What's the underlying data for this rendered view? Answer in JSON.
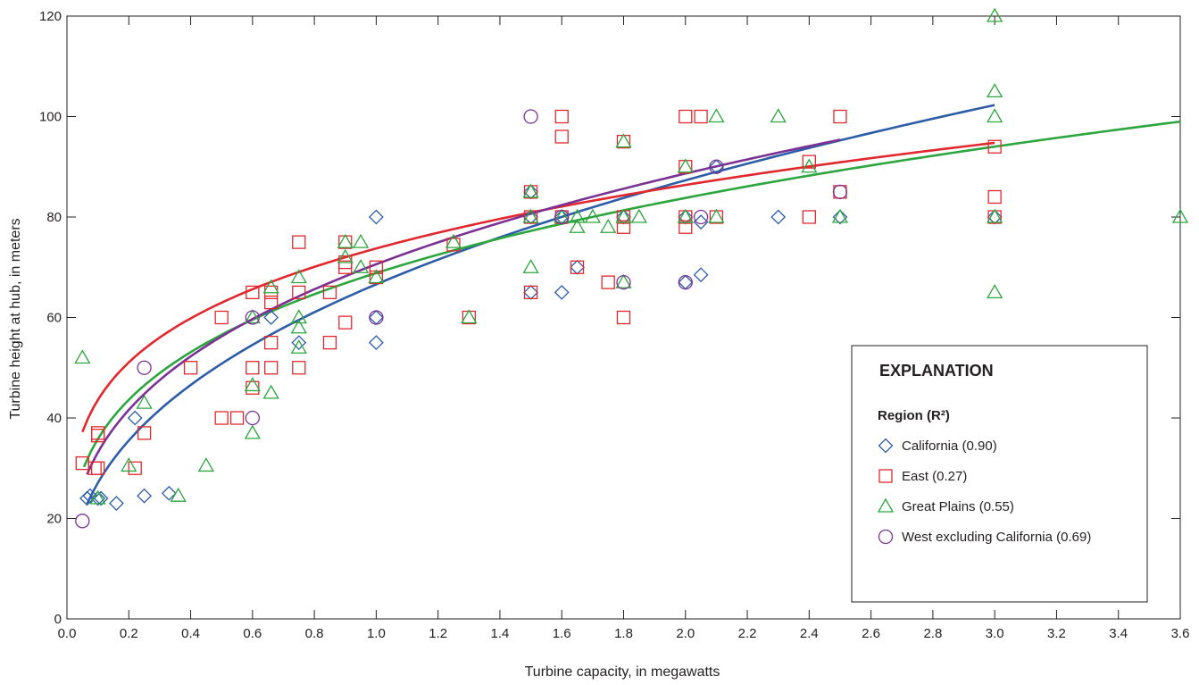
{
  "chart_data": {
    "type": "scatter",
    "xlabel": "Turbine capacity, in megawatts",
    "ylabel": "Turbine height at hub, in meters",
    "xlim": [
      0,
      3.6
    ],
    "ylim": [
      0,
      120
    ],
    "x_ticks": [
      "0.0",
      "0.2",
      "0.4",
      "0.6",
      "0.8",
      "1.0",
      "1.2",
      "1.4",
      "1.6",
      "1.8",
      "2.0",
      "2.2",
      "2.4",
      "2.6",
      "2.8",
      "3.0",
      "3.2",
      "3.4",
      "3.6"
    ],
    "y_ticks": [
      "0",
      "20",
      "40",
      "60",
      "80",
      "100",
      "120"
    ],
    "grid": false,
    "legend": {
      "title": "EXPLANATION",
      "subtitle": "Region (R²)",
      "placement": "lower-right",
      "entries": [
        {
          "label": "California (0.90)",
          "series": 0
        },
        {
          "label": "East (0.27)",
          "series": 1
        },
        {
          "label": "Great Plains (0.55)",
          "series": 2
        },
        {
          "label": "West excluding California (0.69)",
          "series": 3
        }
      ]
    },
    "series": [
      {
        "color": "#2e5da8",
        "marker": "diamond",
        "points": [
          [
            0.065,
            24
          ],
          [
            0.075,
            24.5
          ],
          [
            0.1,
            24
          ],
          [
            0.11,
            24
          ],
          [
            0.16,
            23
          ],
          [
            0.22,
            40
          ],
          [
            0.25,
            24.5
          ],
          [
            0.33,
            25
          ],
          [
            0.66,
            60
          ],
          [
            0.75,
            55
          ],
          [
            1.0,
            80
          ],
          [
            1.0,
            55
          ],
          [
            1.0,
            60
          ],
          [
            1.5,
            65
          ],
          [
            1.5,
            80
          ],
          [
            1.5,
            85
          ],
          [
            1.6,
            80
          ],
          [
            1.6,
            65
          ],
          [
            1.65,
            70
          ],
          [
            1.8,
            80
          ],
          [
            2.0,
            67
          ],
          [
            2.0,
            80
          ],
          [
            2.05,
            79
          ],
          [
            2.05,
            68.5
          ],
          [
            2.1,
            90
          ],
          [
            2.3,
            80
          ],
          [
            2.5,
            80
          ],
          [
            3.0,
            80
          ]
        ]
      },
      {
        "color": "#e0282e",
        "marker": "square",
        "points": [
          [
            0.05,
            31
          ],
          [
            0.09,
            30
          ],
          [
            0.1,
            37
          ],
          [
            0.1,
            36.5
          ],
          [
            0.1,
            30
          ],
          [
            0.22,
            30
          ],
          [
            0.25,
            37
          ],
          [
            0.4,
            50
          ],
          [
            0.5,
            40
          ],
          [
            0.5,
            60
          ],
          [
            0.55,
            40
          ],
          [
            0.6,
            65
          ],
          [
            0.6,
            50
          ],
          [
            0.6,
            46
          ],
          [
            0.66,
            65
          ],
          [
            0.66,
            63
          ],
          [
            0.66,
            55
          ],
          [
            0.66,
            50
          ],
          [
            0.75,
            75
          ],
          [
            0.75,
            65
          ],
          [
            0.75,
            50
          ],
          [
            0.85,
            65
          ],
          [
            0.85,
            55
          ],
          [
            0.9,
            75
          ],
          [
            0.9,
            71
          ],
          [
            0.9,
            70
          ],
          [
            0.9,
            59
          ],
          [
            1.0,
            70
          ],
          [
            1.0,
            68
          ],
          [
            1.25,
            74.5
          ],
          [
            1.3,
            60
          ],
          [
            1.5,
            85
          ],
          [
            1.5,
            80
          ],
          [
            1.5,
            65
          ],
          [
            1.6,
            100
          ],
          [
            1.6,
            96
          ],
          [
            1.6,
            80
          ],
          [
            1.65,
            70
          ],
          [
            1.75,
            67
          ],
          [
            1.8,
            95
          ],
          [
            1.8,
            80
          ],
          [
            1.8,
            78
          ],
          [
            1.8,
            60
          ],
          [
            2.0,
            100
          ],
          [
            2.0,
            90
          ],
          [
            2.0,
            80
          ],
          [
            2.0,
            78
          ],
          [
            2.05,
            100
          ],
          [
            2.1,
            80
          ],
          [
            2.4,
            91
          ],
          [
            2.4,
            80
          ],
          [
            2.5,
            100
          ],
          [
            2.5,
            85
          ],
          [
            3.0,
            94
          ],
          [
            3.0,
            84
          ],
          [
            3.0,
            80
          ]
        ]
      },
      {
        "color": "#2da63f",
        "marker": "triangle",
        "points": [
          [
            0.05,
            52
          ],
          [
            0.1,
            24
          ],
          [
            0.2,
            30.5
          ],
          [
            0.25,
            43
          ],
          [
            0.36,
            24.5
          ],
          [
            0.45,
            30.5
          ],
          [
            0.6,
            60
          ],
          [
            0.6,
            46.5
          ],
          [
            0.6,
            37
          ],
          [
            0.66,
            66
          ],
          [
            0.66,
            45
          ],
          [
            0.75,
            68
          ],
          [
            0.75,
            60
          ],
          [
            0.75,
            58
          ],
          [
            0.75,
            54
          ],
          [
            0.9,
            75
          ],
          [
            0.9,
            72
          ],
          [
            0.95,
            75
          ],
          [
            0.95,
            70
          ],
          [
            1.0,
            68
          ],
          [
            1.25,
            75
          ],
          [
            1.3,
            60
          ],
          [
            1.5,
            85
          ],
          [
            1.5,
            80
          ],
          [
            1.5,
            70
          ],
          [
            1.6,
            80
          ],
          [
            1.65,
            80
          ],
          [
            1.65,
            78
          ],
          [
            1.7,
            80
          ],
          [
            1.75,
            78
          ],
          [
            1.8,
            95
          ],
          [
            1.8,
            80
          ],
          [
            1.8,
            67
          ],
          [
            1.85,
            80
          ],
          [
            2.0,
            90
          ],
          [
            2.0,
            80
          ],
          [
            2.1,
            100
          ],
          [
            2.1,
            80
          ],
          [
            2.3,
            100
          ],
          [
            2.4,
            90
          ],
          [
            2.5,
            80
          ],
          [
            3.0,
            120
          ],
          [
            3.0,
            105
          ],
          [
            3.0,
            100
          ],
          [
            3.0,
            80
          ],
          [
            3.0,
            65
          ],
          [
            3.6,
            80
          ]
        ]
      },
      {
        "color": "#7b3294",
        "marker": "circle",
        "points": [
          [
            0.05,
            19.5
          ],
          [
            0.25,
            50
          ],
          [
            0.6,
            60
          ],
          [
            0.6,
            40
          ],
          [
            1.0,
            60
          ],
          [
            1.5,
            100
          ],
          [
            1.6,
            80
          ],
          [
            1.8,
            67
          ],
          [
            2.0,
            67
          ],
          [
            2.05,
            80
          ],
          [
            2.1,
            90
          ],
          [
            2.5,
            85
          ]
        ]
      }
    ],
    "trendlines": [
      {
        "series": 0,
        "form": "power",
        "a": 66.6,
        "b": 0.3906,
        "x_range": [
          0.065,
          3.0
        ]
      },
      {
        "series": 1,
        "form": "power",
        "a": 73.74,
        "b": 0.2283,
        "x_range": [
          0.05,
          3.0
        ]
      },
      {
        "series": 2,
        "form": "power",
        "a": 68.85,
        "b": 0.2835,
        "x_range": [
          0.055,
          3.6
        ]
      },
      {
        "series": 3,
        "form": "power",
        "a": 70.6,
        "b": 0.3284,
        "x_range": [
          0.065,
          2.5
        ]
      }
    ]
  }
}
